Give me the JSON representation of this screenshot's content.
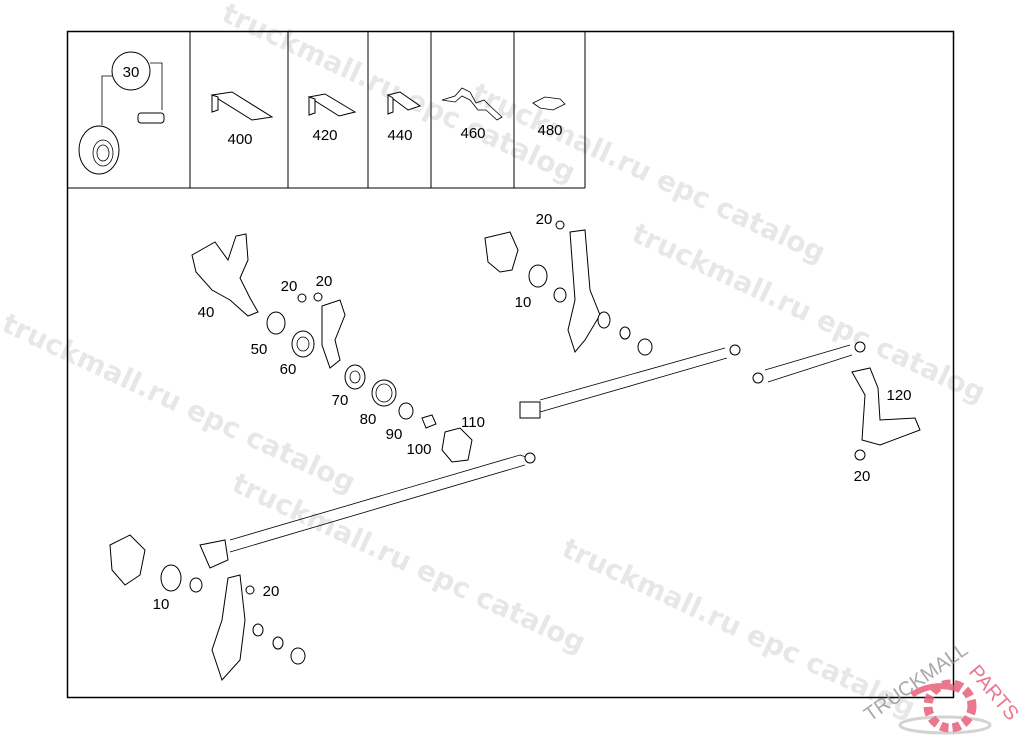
{
  "watermark": "truckmall.ru epc catalog",
  "logo": {
    "text_left": "TRUCKMALL",
    "text_right": "PARTS",
    "color": "#e8607a"
  },
  "top_parts": [
    {
      "label": "30"
    },
    {
      "label": "400"
    },
    {
      "label": "420"
    },
    {
      "label": "440"
    },
    {
      "label": "460"
    },
    {
      "label": "480"
    }
  ],
  "callouts": [
    "20",
    "10",
    "40",
    "20",
    "20",
    "50",
    "60",
    "70",
    "80",
    "90",
    "100",
    "110",
    "120",
    "20",
    "10",
    "20"
  ]
}
